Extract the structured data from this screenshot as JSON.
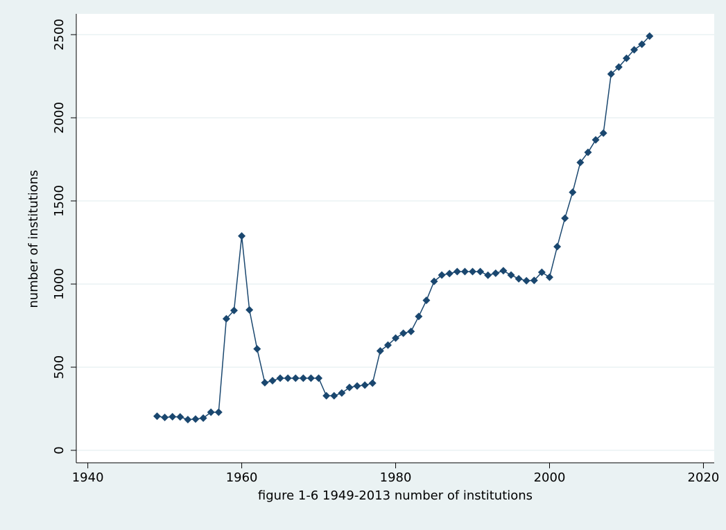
{
  "chart_data": {
    "type": "line",
    "title": "figure 1-6 1949-2013 number of institutions",
    "y_label": "number of institutions",
    "x": [
      1949,
      1950,
      1951,
      1952,
      1953,
      1954,
      1955,
      1956,
      1957,
      1958,
      1959,
      1960,
      1961,
      1962,
      1963,
      1964,
      1965,
      1966,
      1967,
      1968,
      1969,
      1970,
      1971,
      1972,
      1973,
      1974,
      1975,
      1976,
      1977,
      1978,
      1979,
      1980,
      1981,
      1982,
      1983,
      1984,
      1985,
      1986,
      1987,
      1988,
      1989,
      1990,
      1991,
      1992,
      1993,
      1994,
      1995,
      1996,
      1997,
      1998,
      1999,
      2000,
      2001,
      2002,
      2003,
      2004,
      2005,
      2006,
      2007,
      2008,
      2009,
      2010,
      2011,
      2012,
      2013
    ],
    "series": [
      {
        "name": "number of institutions",
        "color": "#1a476f",
        "values": [
          205,
          198,
          202,
          201,
          185,
          188,
          194,
          229,
          229,
          791,
          841,
          1289,
          845,
          610,
          407,
          419,
          434,
          434,
          434,
          434,
          434,
          434,
          328,
          328,
          345,
          378,
          387,
          392,
          404,
          598,
          633,
          675,
          704,
          715,
          805,
          902,
          1016,
          1054,
          1063,
          1075,
          1075,
          1075,
          1075,
          1053,
          1065,
          1080,
          1054,
          1032,
          1020,
          1022,
          1071,
          1041,
          1225,
          1396,
          1552,
          1731,
          1792,
          1867,
          1908,
          2263,
          2305,
          2358,
          2409,
          2442,
          2491
        ]
      }
    ],
    "xlim": [
      1938.5,
      2021.4
    ],
    "xticks": [
      1940,
      1960,
      1980,
      2000,
      2020
    ],
    "ylim": [
      -75,
      2625
    ],
    "yticks": [
      0,
      500,
      1000,
      1500,
      2000,
      2500
    ],
    "grid": true,
    "marker": "diamond"
  }
}
